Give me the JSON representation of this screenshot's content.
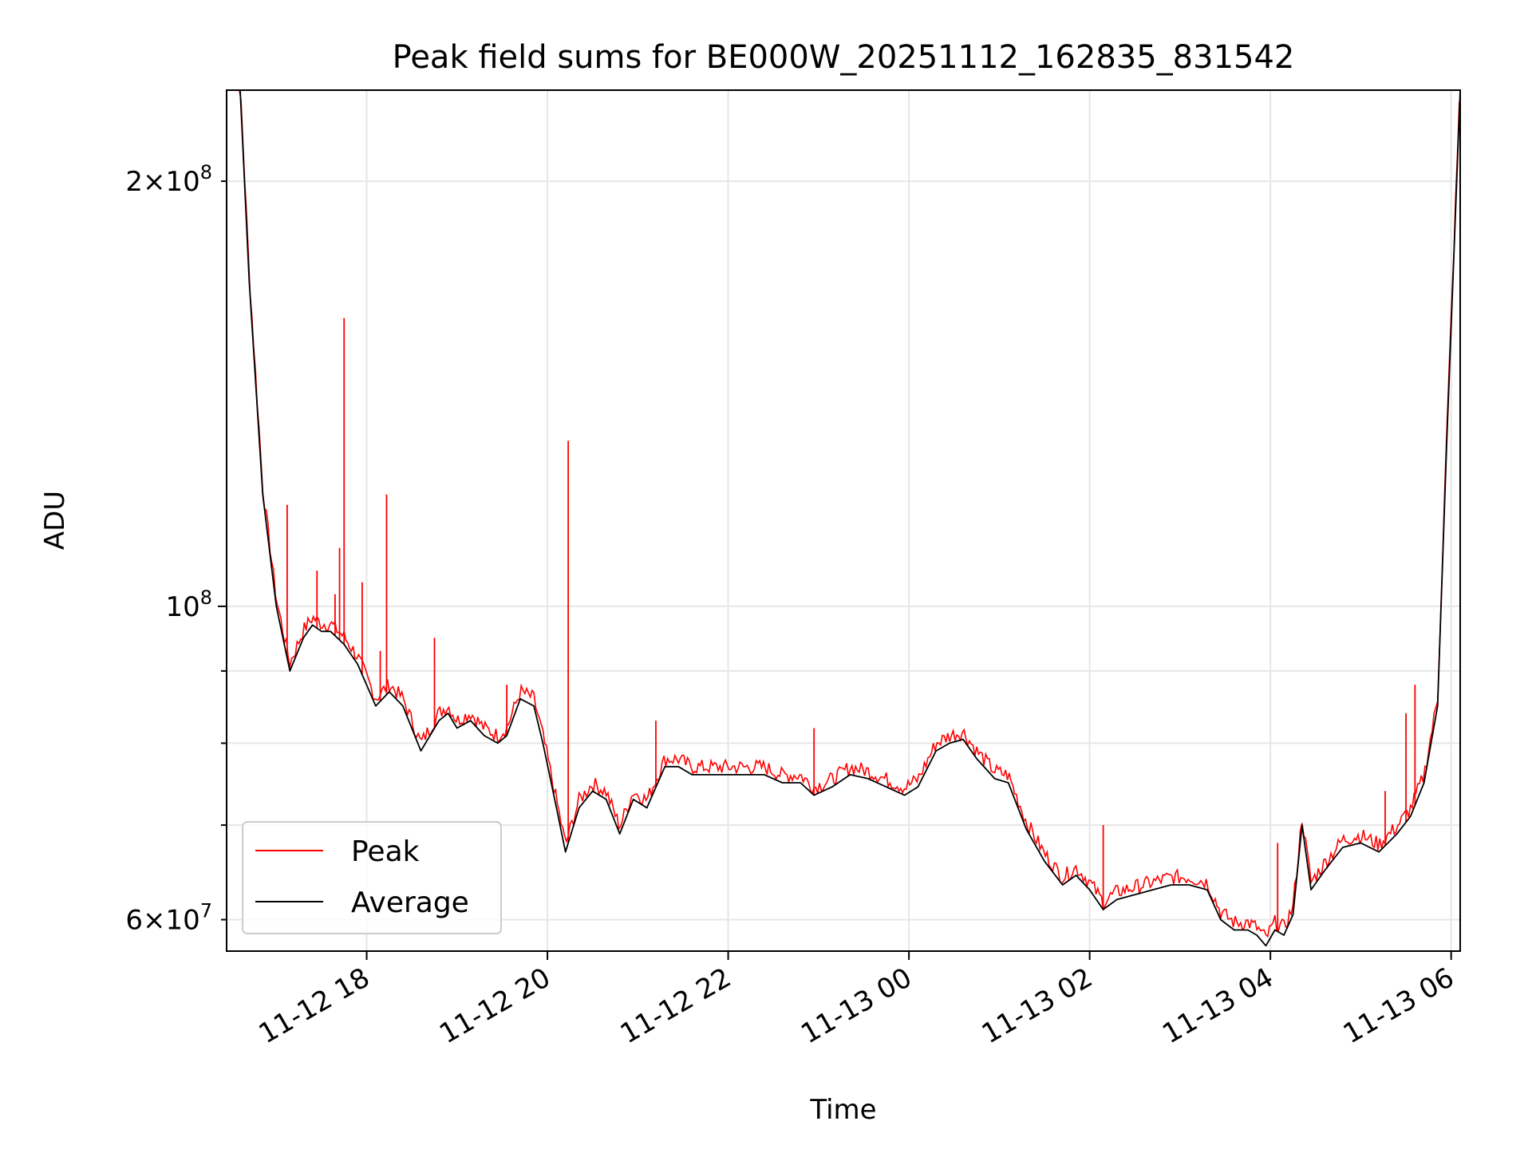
{
  "chart_data": {
    "type": "line",
    "title": "Peak field sums for BE000W_20251112_162835_831542",
    "xlabel": "Time",
    "ylabel": "ADU",
    "yscale": "log",
    "grid": true,
    "legend_position": "lower-left",
    "xlim_hours": [
      16.45,
      30.1
    ],
    "ylim": [
      57000000,
      232000000
    ],
    "x_ticks": [
      {
        "hour": 18,
        "label": "11-12 18"
      },
      {
        "hour": 20,
        "label": "11-12 20"
      },
      {
        "hour": 22,
        "label": "11-12 22"
      },
      {
        "hour": 24,
        "label": "11-13 00"
      },
      {
        "hour": 26,
        "label": "11-13 02"
      },
      {
        "hour": 28,
        "label": "11-13 04"
      },
      {
        "hour": 30,
        "label": "11-13 06"
      }
    ],
    "y_major_ticks": [
      {
        "value": 100000000,
        "base": "10",
        "exp": "8"
      }
    ],
    "y_minor_labeled": [
      {
        "value": 60000000,
        "mant": "6",
        "base": "10",
        "exp": "7"
      },
      {
        "value": 200000000,
        "mant": "2",
        "base": "10",
        "exp": "8"
      }
    ],
    "y_minor_unlabeled": [
      70000000,
      80000000,
      90000000
    ],
    "series": [
      {
        "name": "Average",
        "color": "#000000",
        "x_hours": [
          16.45,
          16.6,
          16.7,
          16.85,
          17.0,
          17.15,
          17.3,
          17.4,
          17.5,
          17.6,
          17.75,
          17.9,
          18.1,
          18.25,
          18.4,
          18.6,
          18.8,
          18.9,
          19.0,
          19.15,
          19.3,
          19.45,
          19.55,
          19.7,
          19.85,
          19.95,
          20.1,
          20.2,
          20.35,
          20.5,
          20.65,
          20.8,
          20.95,
          21.1,
          21.3,
          21.45,
          21.6,
          21.8,
          22.0,
          22.2,
          22.4,
          22.6,
          22.8,
          22.95,
          23.15,
          23.35,
          23.55,
          23.75,
          23.95,
          24.1,
          24.3,
          24.45,
          24.6,
          24.75,
          24.95,
          25.1,
          25.3,
          25.5,
          25.7,
          25.85,
          26.0,
          26.15,
          26.3,
          26.5,
          26.7,
          26.9,
          27.1,
          27.3,
          27.45,
          27.6,
          27.75,
          27.85,
          27.95,
          28.05,
          28.15,
          28.25,
          28.35,
          28.45,
          28.6,
          28.8,
          29.0,
          29.2,
          29.4,
          29.55,
          29.7,
          29.85,
          29.95,
          30.1
        ],
        "values": [
          232000000,
          232000000,
          170000000,
          120000000,
          100000000,
          90000000,
          95000000,
          97000000,
          96000000,
          96000000,
          94000000,
          91000000,
          85000000,
          87000000,
          85000000,
          79000000,
          83000000,
          84000000,
          82000000,
          83000000,
          81000000,
          80000000,
          81000000,
          86000000,
          85000000,
          80000000,
          72000000,
          67000000,
          72000000,
          74000000,
          73000000,
          69000000,
          73000000,
          72000000,
          77000000,
          77000000,
          76000000,
          76000000,
          76000000,
          76000000,
          76000000,
          75000000,
          75000000,
          73500000,
          74500000,
          76000000,
          75500000,
          74500000,
          73500000,
          74500000,
          79000000,
          80000000,
          80500000,
          78000000,
          75500000,
          75000000,
          69500000,
          66000000,
          63500000,
          64500000,
          63000000,
          61000000,
          62000000,
          62500000,
          63000000,
          63500000,
          63500000,
          63000000,
          60000000,
          59000000,
          59000000,
          58500000,
          57500000,
          59000000,
          58500000,
          60500000,
          70000000,
          63000000,
          65000000,
          67500000,
          68000000,
          67000000,
          69000000,
          71000000,
          75000000,
          85000000,
          130000000,
          232000000
        ]
      },
      {
        "name": "Peak",
        "color": "#ff0000",
        "spikes": [
          {
            "hour": 17.12,
            "value": 118000000
          },
          {
            "hour": 17.45,
            "value": 106000000
          },
          {
            "hour": 17.65,
            "value": 102000000
          },
          {
            "hour": 17.7,
            "value": 110000000
          },
          {
            "hour": 17.75,
            "value": 160000000
          },
          {
            "hour": 17.95,
            "value": 104000000
          },
          {
            "hour": 18.15,
            "value": 93000000
          },
          {
            "hour": 18.22,
            "value": 120000000
          },
          {
            "hour": 18.75,
            "value": 95000000
          },
          {
            "hour": 19.55,
            "value": 88000000
          },
          {
            "hour": 20.23,
            "value": 131000000
          },
          {
            "hour": 21.2,
            "value": 83000000
          },
          {
            "hour": 22.95,
            "value": 82000000
          },
          {
            "hour": 26.15,
            "value": 70000000
          },
          {
            "hour": 28.08,
            "value": 68000000
          },
          {
            "hour": 29.27,
            "value": 74000000
          },
          {
            "hour": 29.5,
            "value": 84000000
          },
          {
            "hour": 29.6,
            "value": 88000000
          }
        ]
      }
    ]
  }
}
